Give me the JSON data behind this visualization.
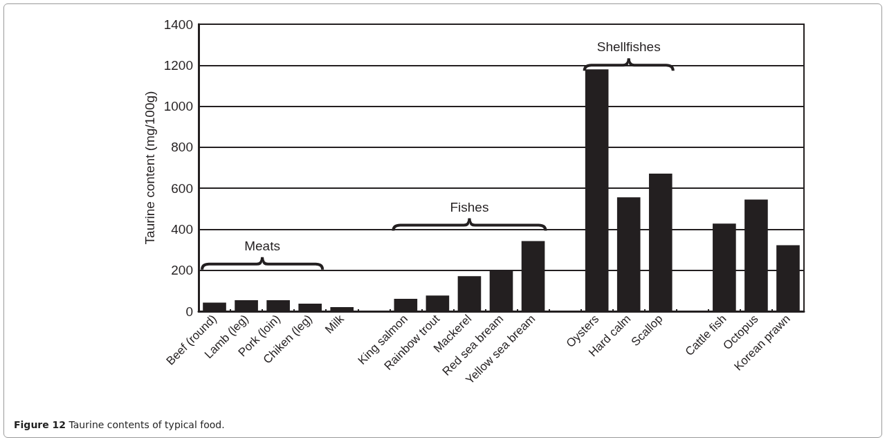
{
  "chart_data": {
    "type": "bar",
    "ylabel": "Taurine content (mg/100g)",
    "categories": [
      "Beef (round)",
      "Lamb (leg)",
      "Pork (loin)",
      "Chiken (leg)",
      "Milk",
      null,
      "King salmon",
      "Rainbow trout",
      "Mackerel",
      "Red sea bream",
      "Yellow sea bream",
      null,
      "Oysters",
      "Hard calm",
      "Scallop",
      null,
      "Cattle fish",
      "Octopus",
      "Korean prawn"
    ],
    "values": [
      42,
      54,
      54,
      37,
      20,
      null,
      61,
      77,
      171,
      200,
      342,
      null,
      1180,
      556,
      671,
      null,
      428,
      545,
      322
    ],
    "color": "#231f20",
    "ylim": [
      0,
      1400
    ],
    "yticks": [
      0,
      200,
      400,
      600,
      800,
      1000,
      1200,
      1400
    ],
    "grid": "y",
    "annotations": [
      "Meats",
      "Fishes",
      "Shellfishes",
      "Figure 12 Taurine contents of typical food."
    ]
  }
}
